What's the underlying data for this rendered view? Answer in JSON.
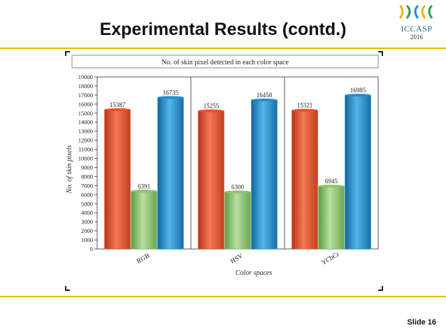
{
  "slide": {
    "title": "Experimental Results (contd.)",
    "slide_label": "Slide 16",
    "logo_text": "ICCASP",
    "logo_year": "2016",
    "accent_color": "#f0b400"
  },
  "chart_data": {
    "type": "bar",
    "title": "No. of skin pixel detected in each color space",
    "xlabel": "Color spaces",
    "ylabel": "No. of skin pixels",
    "categories": [
      "RGB",
      "HSV",
      "YCbCr"
    ],
    "series": [
      {
        "values": [
          15387,
          15255,
          15321
        ],
        "color": "#e8502a"
      },
      {
        "values": [
          6391,
          6300,
          6945
        ],
        "color": "#8cc46a"
      },
      {
        "values": [
          16735,
          16458,
          16985
        ],
        "color": "#1f8fd0"
      }
    ],
    "ylim": [
      0,
      19000
    ],
    "yticks": [
      "0",
      "1000",
      "2000",
      "3000",
      "4000",
      "5000",
      "6000",
      "7000",
      "8000",
      "9000",
      "10000",
      "11000",
      "12000",
      "13000",
      "14000",
      "15000",
      "16000",
      "17000",
      "18000",
      "19000"
    ],
    "grid": false
  }
}
